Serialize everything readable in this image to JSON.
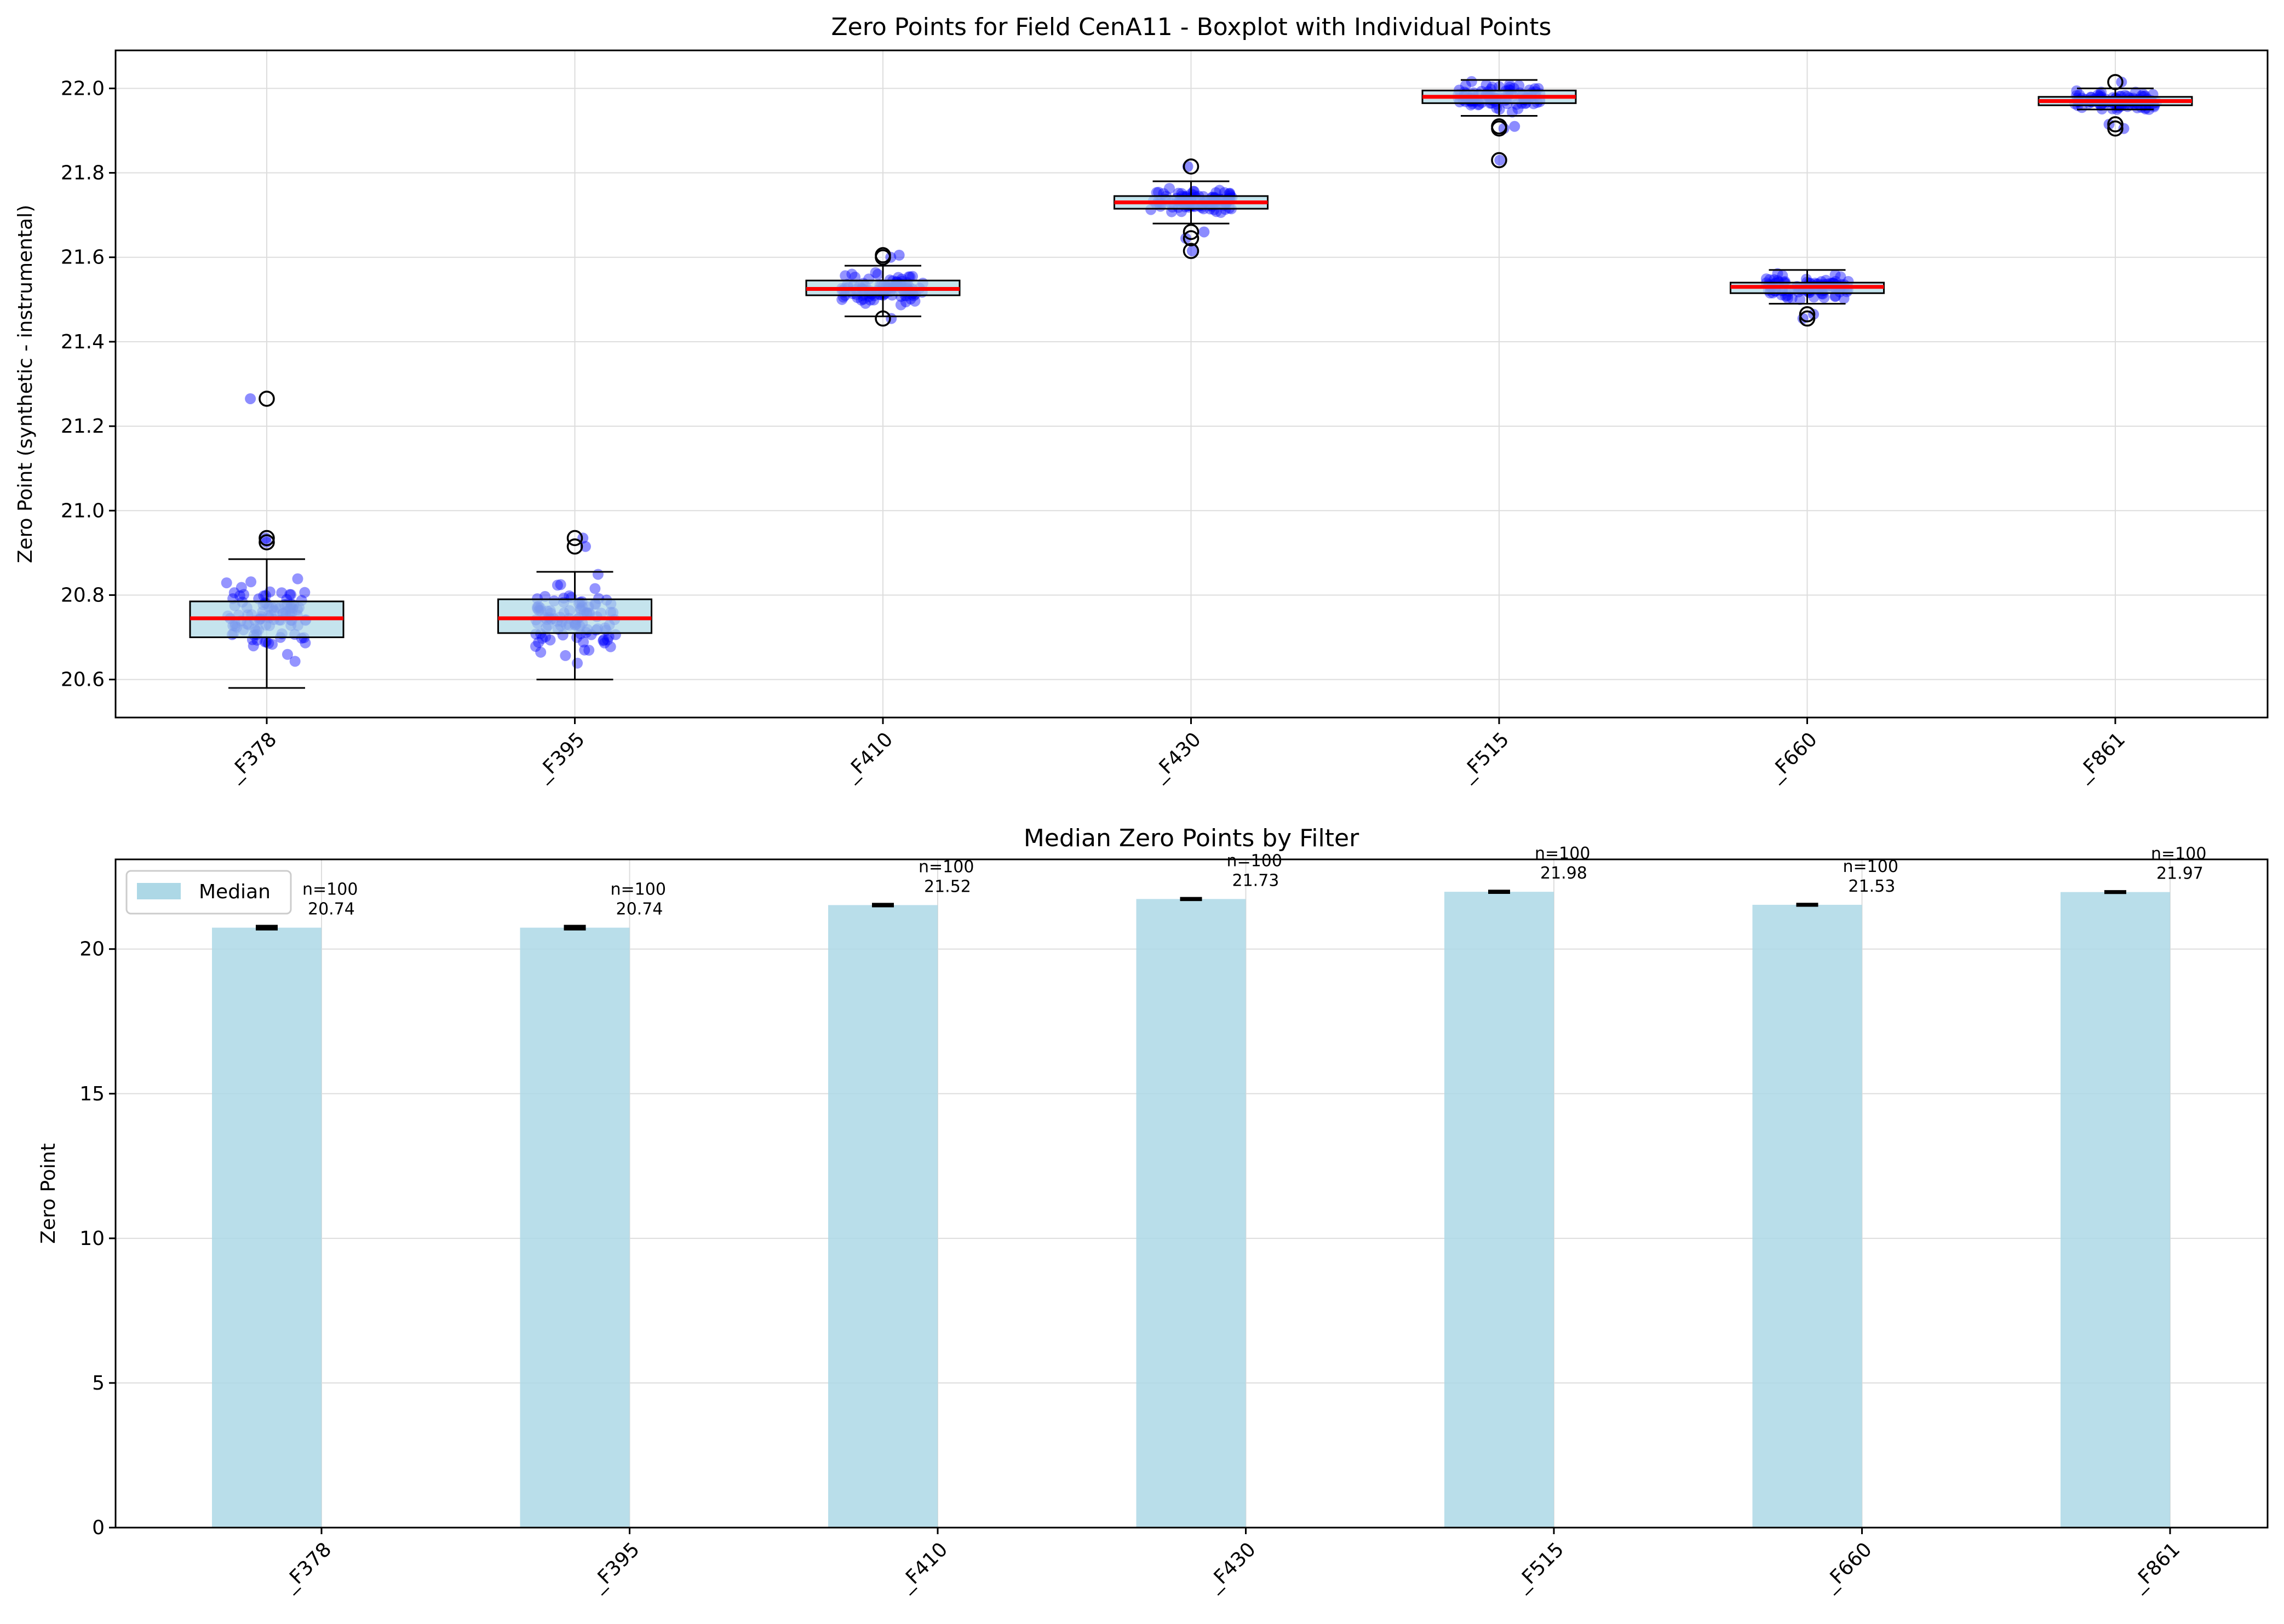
{
  "chart_data": [
    {
      "type": "box",
      "title": "Zero Points for Field CenA11 - Boxplot with Individual Points",
      "xlabel": "",
      "ylabel": "Zero Point (synthetic - instrumental)",
      "ylim": [
        20.51,
        22.09
      ],
      "yticks": [
        20.6,
        20.8,
        21.0,
        21.2,
        21.4,
        21.6,
        21.8,
        22.0
      ],
      "grid": true,
      "categories": [
        "_F378",
        "_F395",
        "_F410",
        "_F430",
        "_F515",
        "_F660",
        "_F861"
      ],
      "boxes": [
        {
          "label": "_F378",
          "whislo": 20.58,
          "q1": 20.7,
          "median": 20.745,
          "q3": 20.785,
          "whishi": 20.885,
          "fliers": [
            21.265,
            20.935,
            20.925
          ]
        },
        {
          "label": "_F395",
          "whislo": 20.6,
          "q1": 20.71,
          "median": 20.745,
          "q3": 20.79,
          "whishi": 20.855,
          "fliers": [
            20.935,
            20.915
          ]
        },
        {
          "label": "_F410",
          "whislo": 21.46,
          "q1": 21.51,
          "median": 21.525,
          "q3": 21.545,
          "whishi": 21.58,
          "fliers": [
            21.605,
            21.6,
            21.455
          ]
        },
        {
          "label": "_F430",
          "whislo": 21.68,
          "q1": 21.715,
          "median": 21.73,
          "q3": 21.745,
          "whishi": 21.78,
          "fliers": [
            21.815,
            21.66,
            21.645,
            21.615
          ]
        },
        {
          "label": "_F515",
          "whislo": 21.935,
          "q1": 21.965,
          "median": 21.98,
          "q3": 21.995,
          "whishi": 22.02,
          "fliers": [
            21.91,
            21.905,
            21.83
          ]
        },
        {
          "label": "_F660",
          "whislo": 21.49,
          "q1": 21.515,
          "median": 21.53,
          "q3": 21.54,
          "whishi": 21.57,
          "fliers": [
            21.465,
            21.455
          ]
        },
        {
          "label": "_F861",
          "whislo": 21.95,
          "q1": 21.96,
          "median": 21.97,
          "q3": 21.98,
          "whishi": 22.0,
          "fliers": [
            22.015,
            21.915,
            21.905
          ]
        }
      ],
      "points_per_box": 100,
      "point_color": "#0000ff",
      "box_fill": "#add8e6",
      "median_color": "#ff0000"
    },
    {
      "type": "bar",
      "title": "Median Zero Points by Filter",
      "xlabel": "",
      "ylabel": "Zero Point",
      "ylim": [
        0,
        23.1
      ],
      "yticks": [
        0,
        5,
        10,
        15,
        20
      ],
      "grid": true,
      "legend_position": "top-left",
      "categories": [
        "_F378",
        "_F395",
        "_F410",
        "_F430",
        "_F515",
        "_F660",
        "_F861"
      ],
      "series": [
        {
          "name": "Median",
          "values": [
            20.74,
            20.74,
            21.52,
            21.73,
            21.98,
            21.53,
            21.97
          ],
          "errors": [
            0.04,
            0.04,
            0.02,
            0.015,
            0.015,
            0.012,
            0.01
          ]
        }
      ],
      "annotations": [
        {
          "n": "n=100",
          "value": "20.74"
        },
        {
          "n": "n=100",
          "value": "20.74"
        },
        {
          "n": "n=100",
          "value": "21.52"
        },
        {
          "n": "n=100",
          "value": "21.73"
        },
        {
          "n": "n=100",
          "value": "21.98"
        },
        {
          "n": "n=100",
          "value": "21.53"
        },
        {
          "n": "n=100",
          "value": "21.97"
        }
      ],
      "bar_color": "#add8e6"
    }
  ]
}
